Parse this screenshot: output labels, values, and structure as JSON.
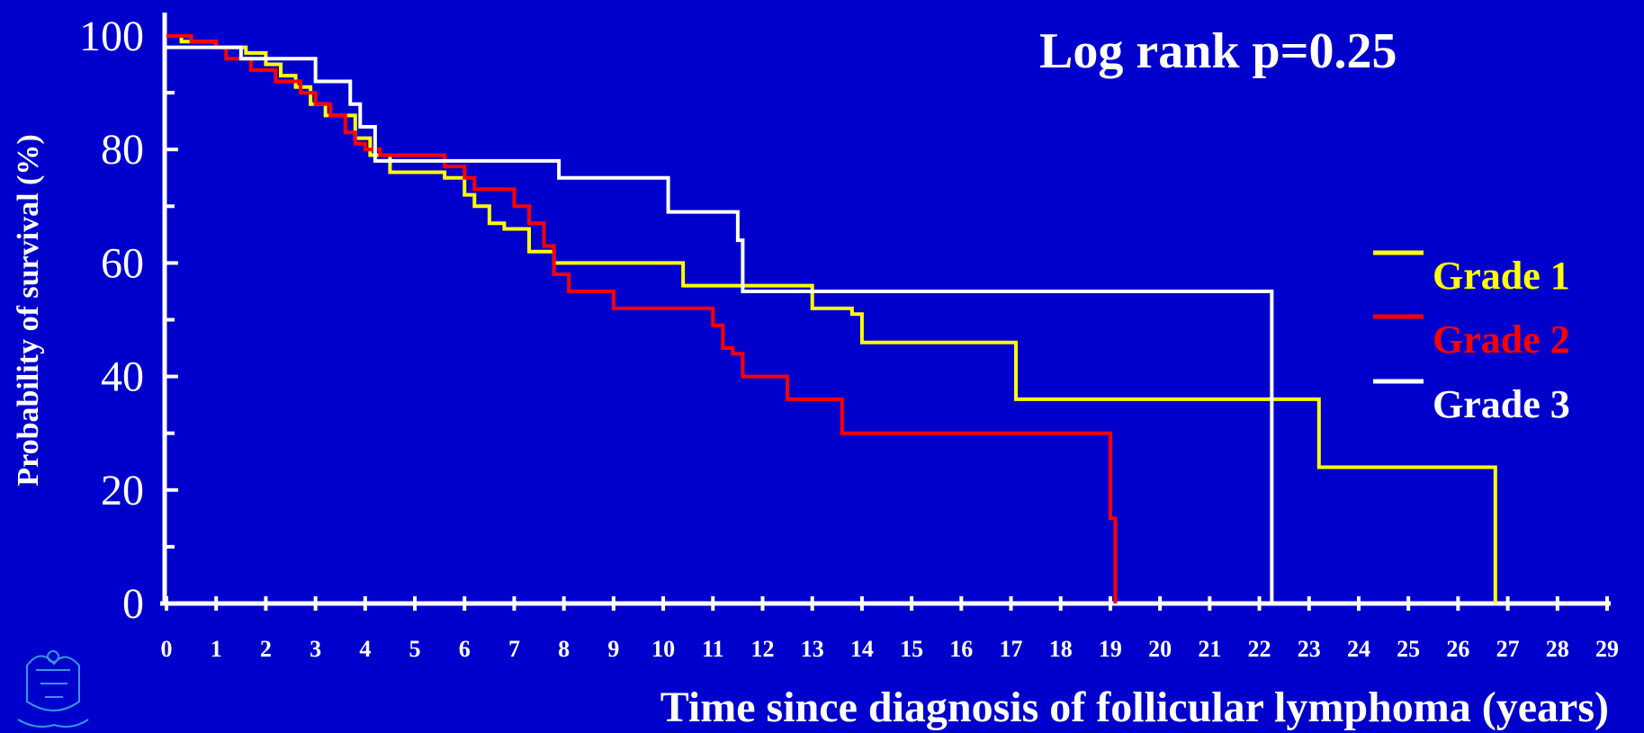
{
  "chart_data": {
    "type": "line",
    "step": true,
    "annotation": "Log rank p=0.25",
    "xlabel": "Time since diagnosis of follicular lymphoma (years)",
    "ylabel": "Probability of survival (%)",
    "xlim": [
      0,
      29
    ],
    "ylim": [
      0,
      100
    ],
    "xticks": [
      0,
      1,
      2,
      3,
      4,
      5,
      6,
      7,
      8,
      9,
      10,
      11,
      12,
      13,
      14,
      15,
      16,
      17,
      18,
      19,
      20,
      21,
      22,
      23,
      24,
      25,
      26,
      27,
      28,
      29
    ],
    "yticks": [
      0,
      20,
      40,
      60,
      80,
      100
    ],
    "grid": false,
    "legend_position": "right",
    "series": [
      {
        "name": "Grade 1",
        "color": "#ffff00",
        "x": [
          0,
          0.3,
          1.0,
          1.6,
          2.0,
          2.3,
          2.6,
          2.9,
          3.2,
          3.5,
          3.8,
          4.1,
          4.5,
          5.0,
          5.6,
          6.0,
          6.2,
          6.5,
          6.8,
          7.3,
          7.8,
          10.4,
          12.8,
          13.0,
          13.8,
          14.0,
          17.0,
          17.1,
          19.0,
          23.0,
          23.2,
          25.0,
          26.7,
          26.75
        ],
        "y": [
          100,
          99,
          98,
          97,
          95,
          93,
          91,
          88,
          86,
          86,
          82,
          79,
          76,
          76,
          75,
          72,
          70,
          67,
          66,
          62,
          60,
          56,
          56,
          52,
          51,
          46,
          46,
          36,
          36,
          36,
          24,
          24,
          24,
          0
        ]
      },
      {
        "name": "Grade 2",
        "color": "#ff0000",
        "x": [
          0,
          0.5,
          1.0,
          1.2,
          1.7,
          2.2,
          2.7,
          3.0,
          3.3,
          3.6,
          3.8,
          4.0,
          4.3,
          5.4,
          5.6,
          6.0,
          6.2,
          6.8,
          7.0,
          7.3,
          7.6,
          7.8,
          8.1,
          9.0,
          11.0,
          11.2,
          11.4,
          11.6,
          12.5,
          13.5,
          13.6,
          18.9,
          19.0,
          19.1
        ],
        "y": [
          100,
          99,
          98,
          96,
          94,
          92,
          90,
          88,
          86,
          83,
          81,
          80,
          79,
          79,
          77,
          75,
          73,
          73,
          70,
          67,
          63,
          58,
          55,
          52,
          49,
          45,
          44,
          40,
          36,
          36,
          30,
          30,
          15,
          0
        ]
      },
      {
        "name": "Grade 3",
        "color": "#ffffff",
        "x": [
          0,
          0.8,
          1.5,
          2.2,
          3.0,
          3.5,
          3.7,
          3.9,
          4.2,
          7.5,
          7.9,
          9.1,
          10.1,
          11.5,
          11.6,
          12.0,
          19.0,
          22.2,
          22.25
        ],
        "y": [
          98,
          98,
          96,
          96,
          92,
          92,
          88,
          84,
          78,
          78,
          75,
          75,
          69,
          64,
          55,
          55,
          55,
          55,
          0
        ]
      }
    ]
  }
}
